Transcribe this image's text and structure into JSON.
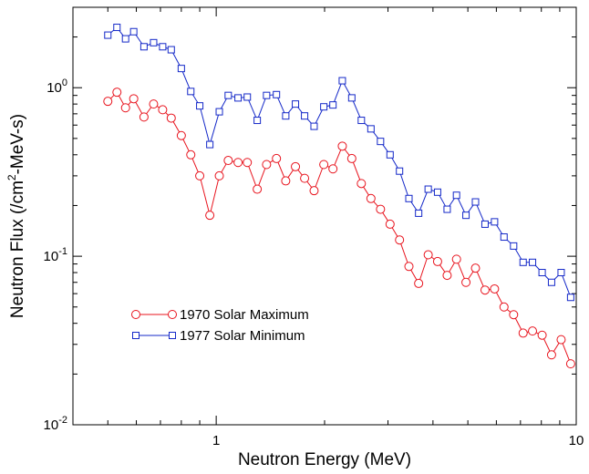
{
  "chart_data": {
    "type": "line",
    "xlabel": "Neutron Energy (MeV)",
    "ylabel": "Neutron Flux (/cm²-MeV-s)",
    "ylabel_parts": {
      "pre": "Neutron Flux (/cm",
      "sup": "2",
      "post": "-MeV-s)"
    },
    "xscale": "log",
    "yscale": "log",
    "xlim": [
      0.4,
      10
    ],
    "ylim": [
      0.01,
      3
    ],
    "grid": false,
    "legend_position": "lower-left",
    "x_major_ticks": [
      {
        "value": 1,
        "label": "1"
      },
      {
        "value": 10,
        "label": "10"
      }
    ],
    "y_major_ticks": [
      {
        "value": 0.01,
        "base": "10",
        "exp": "-2"
      },
      {
        "value": 0.1,
        "base": "10",
        "exp": "-1"
      },
      {
        "value": 1,
        "base": "10",
        "exp": "0"
      }
    ],
    "series": [
      {
        "name": "1970 Solar Maximum",
        "color": "#e8141e",
        "marker": "circle",
        "points": [
          [
            0.5,
            0.83
          ],
          [
            0.53,
            0.94
          ],
          [
            0.56,
            0.76
          ],
          [
            0.59,
            0.86
          ],
          [
            0.63,
            0.67
          ],
          [
            0.67,
            0.8
          ],
          [
            0.71,
            0.74
          ],
          [
            0.75,
            0.66
          ],
          [
            0.8,
            0.52
          ],
          [
            0.85,
            0.4
          ],
          [
            0.9,
            0.3
          ],
          [
            0.96,
            0.175
          ],
          [
            1.02,
            0.3
          ],
          [
            1.08,
            0.37
          ],
          [
            1.15,
            0.36
          ],
          [
            1.22,
            0.36
          ],
          [
            1.3,
            0.25
          ],
          [
            1.38,
            0.35
          ],
          [
            1.47,
            0.38
          ],
          [
            1.56,
            0.28
          ],
          [
            1.66,
            0.34
          ],
          [
            1.76,
            0.29
          ],
          [
            1.87,
            0.245
          ],
          [
            1.99,
            0.35
          ],
          [
            2.11,
            0.33
          ],
          [
            2.24,
            0.45
          ],
          [
            2.38,
            0.38
          ],
          [
            2.53,
            0.27
          ],
          [
            2.69,
            0.22
          ],
          [
            2.86,
            0.19
          ],
          [
            3.04,
            0.155
          ],
          [
            3.23,
            0.125
          ],
          [
            3.43,
            0.087
          ],
          [
            3.65,
            0.069
          ],
          [
            3.88,
            0.102
          ],
          [
            4.12,
            0.093
          ],
          [
            4.38,
            0.077
          ],
          [
            4.65,
            0.096
          ],
          [
            4.94,
            0.07
          ],
          [
            5.25,
            0.085
          ],
          [
            5.58,
            0.063
          ],
          [
            5.93,
            0.064
          ],
          [
            6.3,
            0.05
          ],
          [
            6.7,
            0.045
          ],
          [
            7.12,
            0.035
          ],
          [
            7.56,
            0.036
          ],
          [
            8.04,
            0.034
          ],
          [
            8.54,
            0.026
          ],
          [
            9.08,
            0.032
          ],
          [
            9.65,
            0.023
          ]
        ]
      },
      {
        "name": "1977 Solar Minimum",
        "color": "#1428c8",
        "marker": "square",
        "points": [
          [
            0.5,
            2.05
          ],
          [
            0.53,
            2.28
          ],
          [
            0.56,
            1.95
          ],
          [
            0.59,
            2.15
          ],
          [
            0.63,
            1.75
          ],
          [
            0.67,
            1.85
          ],
          [
            0.71,
            1.75
          ],
          [
            0.75,
            1.68
          ],
          [
            0.8,
            1.3
          ],
          [
            0.85,
            0.95
          ],
          [
            0.9,
            0.78
          ],
          [
            0.96,
            0.46
          ],
          [
            1.02,
            0.72
          ],
          [
            1.08,
            0.9
          ],
          [
            1.15,
            0.87
          ],
          [
            1.22,
            0.88
          ],
          [
            1.3,
            0.64
          ],
          [
            1.38,
            0.9
          ],
          [
            1.47,
            0.91
          ],
          [
            1.56,
            0.68
          ],
          [
            1.66,
            0.8
          ],
          [
            1.76,
            0.68
          ],
          [
            1.87,
            0.59
          ],
          [
            1.99,
            0.77
          ],
          [
            2.11,
            0.79
          ],
          [
            2.24,
            1.1
          ],
          [
            2.38,
            0.87
          ],
          [
            2.53,
            0.64
          ],
          [
            2.69,
            0.57
          ],
          [
            2.86,
            0.48
          ],
          [
            3.04,
            0.4
          ],
          [
            3.23,
            0.32
          ],
          [
            3.43,
            0.22
          ],
          [
            3.65,
            0.18
          ],
          [
            3.88,
            0.25
          ],
          [
            4.12,
            0.24
          ],
          [
            4.38,
            0.19
          ],
          [
            4.65,
            0.23
          ],
          [
            4.94,
            0.175
          ],
          [
            5.25,
            0.21
          ],
          [
            5.58,
            0.155
          ],
          [
            5.93,
            0.16
          ],
          [
            6.3,
            0.13
          ],
          [
            6.7,
            0.115
          ],
          [
            7.12,
            0.092
          ],
          [
            7.56,
            0.092
          ],
          [
            8.04,
            0.08
          ],
          [
            8.54,
            0.07
          ],
          [
            9.08,
            0.08
          ],
          [
            9.65,
            0.057
          ]
        ]
      }
    ]
  }
}
